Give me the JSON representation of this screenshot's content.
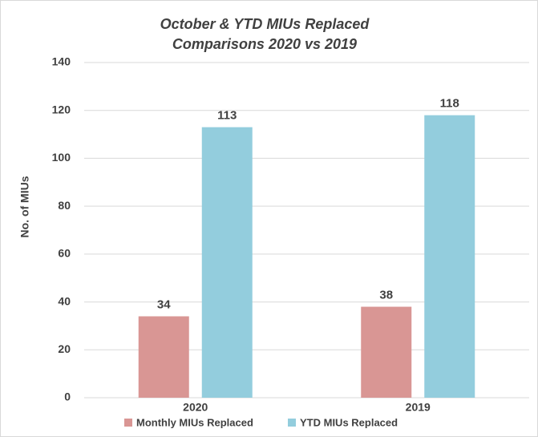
{
  "chart_data": {
    "type": "bar",
    "title": [
      "October & YTD MIUs Replaced",
      "Comparisons 2020 vs 2019"
    ],
    "y_label": "No. of MIUs",
    "categories": [
      "2020",
      "2019"
    ],
    "series": [
      {
        "name": "Monthly MIUs Replaced",
        "color": "#d99694",
        "values": [
          34,
          38
        ]
      },
      {
        "name": "YTD MIUs Replaced",
        "color": "#93cddd",
        "values": [
          113,
          118
        ]
      }
    ],
    "ylim": [
      0,
      140
    ],
    "yticks": [
      0,
      20,
      40,
      60,
      80,
      100,
      120,
      140
    ],
    "grid": true,
    "legend": "bottom"
  }
}
